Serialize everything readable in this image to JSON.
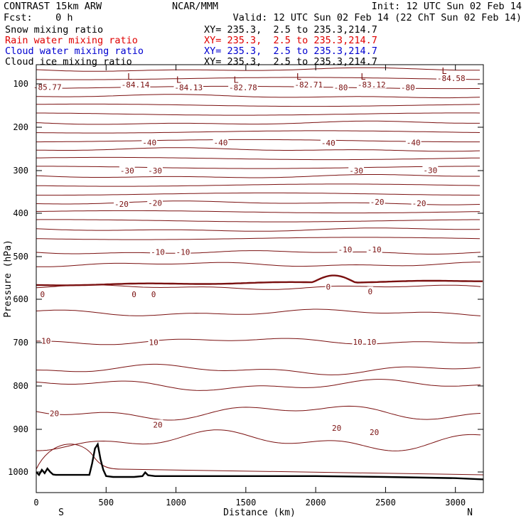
{
  "header": {
    "model": "CONTRAST 15km ARW",
    "center": "NCAR/MMM",
    "init": "Init: 12 UTC Sun 02 Feb 14",
    "fcst": "Fcst:    0 h",
    "valid": "Valid: 12 UTC Sun 02 Feb 14 (22 ChT Sun 02 Feb 14)"
  },
  "fields": [
    {
      "label": "Snow mixing ratio",
      "xy": "XY= 235.3,  2.5 to 235.3,214.7",
      "color": "#000000"
    },
    {
      "label": "Rain water mixing ratio",
      "xy": "XY= 235.3,  2.5 to 235.3,214.7",
      "color": "#e00000"
    },
    {
      "label": "Cloud water mixing ratio",
      "xy": "XY= 235.3,  2.5 to 235.3,214.7",
      "color": "#0000d0"
    },
    {
      "label": "Cloud ice mixing ratio",
      "xy": "XY= 235.3,  2.5 to 235.3,214.7",
      "color": "#000000"
    }
  ],
  "colors": {
    "contour": "#7a1010",
    "terrain": "#000000",
    "axes": "#000000"
  },
  "chart_data": {
    "type": "line",
    "xlabel": "Distance (km)",
    "ylabel": "Pressure (hPa)",
    "xlim": [
      0,
      3200
    ],
    "ylim": [
      1050,
      70
    ],
    "x_ticks": [
      0,
      500,
      1000,
      1500,
      2000,
      2500,
      3000
    ],
    "y_ticks": [
      100,
      200,
      300,
      400,
      500,
      600,
      700,
      800,
      900,
      1000
    ],
    "end_labels": {
      "left": "S",
      "right": "N"
    },
    "contour_interval_c": 10,
    "zero_line_emphasized": true,
    "isotherm_labels": [
      {
        "text": "-85.77",
        "x": 80,
        "p": 107
      },
      {
        "text": "-84.14",
        "x": 710,
        "p": 102
      },
      {
        "text": "-84.13",
        "x": 1090,
        "p": 108
      },
      {
        "text": "-82.78",
        "x": 1480,
        "p": 108
      },
      {
        "text": "-82.71",
        "x": 1950,
        "p": 102
      },
      {
        "text": "-80",
        "x": 2180,
        "p": 108
      },
      {
        "text": "-83.12",
        "x": 2400,
        "p": 102
      },
      {
        "text": "-80",
        "x": 2660,
        "p": 108
      },
      {
        "text": "-84.58",
        "x": 2970,
        "p": 91
      },
      {
        "text": "-40",
        "x": 810,
        "p": 235
      },
      {
        "text": "-40",
        "x": 1320,
        "p": 235
      },
      {
        "text": "-40",
        "x": 2090,
        "p": 236
      },
      {
        "text": "-40",
        "x": 2700,
        "p": 235
      },
      {
        "text": "-30",
        "x": 650,
        "p": 300
      },
      {
        "text": "-30",
        "x": 850,
        "p": 300
      },
      {
        "text": "-30",
        "x": 2290,
        "p": 300
      },
      {
        "text": "-30",
        "x": 2820,
        "p": 299
      },
      {
        "text": "-20",
        "x": 610,
        "p": 378
      },
      {
        "text": "-20",
        "x": 850,
        "p": 376
      },
      {
        "text": "-20",
        "x": 2440,
        "p": 373
      },
      {
        "text": "-20",
        "x": 2740,
        "p": 377
      },
      {
        "text": "-10",
        "x": 870,
        "p": 489
      },
      {
        "text": "-10",
        "x": 1050,
        "p": 489
      },
      {
        "text": "-10",
        "x": 2210,
        "p": 484
      },
      {
        "text": "-10",
        "x": 2420,
        "p": 484
      },
      {
        "text": "0",
        "x": 45,
        "p": 588
      },
      {
        "text": "0",
        "x": 700,
        "p": 588
      },
      {
        "text": "0",
        "x": 840,
        "p": 588
      },
      {
        "text": "0",
        "x": 2090,
        "p": 571
      },
      {
        "text": "0",
        "x": 2390,
        "p": 582
      },
      {
        "text": "10",
        "x": 70,
        "p": 696
      },
      {
        "text": "10",
        "x": 840,
        "p": 699
      },
      {
        "text": "10",
        "x": 2300,
        "p": 698
      },
      {
        "text": "10",
        "x": 2400,
        "p": 698
      },
      {
        "text": "20",
        "x": 130,
        "p": 863
      },
      {
        "text": "20",
        "x": 870,
        "p": 889
      },
      {
        "text": "20",
        "x": 2150,
        "p": 897
      },
      {
        "text": "20",
        "x": 2420,
        "p": 907
      }
    ],
    "low_markers": [
      {
        "text": "L",
        "x": 670,
        "p": 89
      },
      {
        "text": "L",
        "x": 1020,
        "p": 94
      },
      {
        "text": "L",
        "x": 1430,
        "p": 94
      },
      {
        "text": "L",
        "x": 1880,
        "p": 89
      },
      {
        "text": "L",
        "x": 2340,
        "p": 89
      },
      {
        "text": "L",
        "x": 2920,
        "p": 80
      }
    ],
    "terrain_pressure": {
      "x": [
        0,
        20,
        40,
        60,
        80,
        100,
        120,
        140,
        200,
        300,
        380,
        400,
        420,
        440,
        460,
        480,
        500,
        550,
        600,
        700,
        760,
        780,
        800,
        850,
        1000,
        1500,
        2000,
        2500,
        3000,
        3200
      ],
      "p": [
        1000,
        1007,
        995,
        1003,
        992,
        1000,
        1006,
        1007,
        1007,
        1007,
        1007,
        980,
        945,
        935,
        970,
        995,
        1010,
        1012,
        1012,
        1012,
        1010,
        1001,
        1008,
        1010,
        1010,
        1010,
        1010,
        1012,
        1015,
        1018
      ]
    }
  }
}
